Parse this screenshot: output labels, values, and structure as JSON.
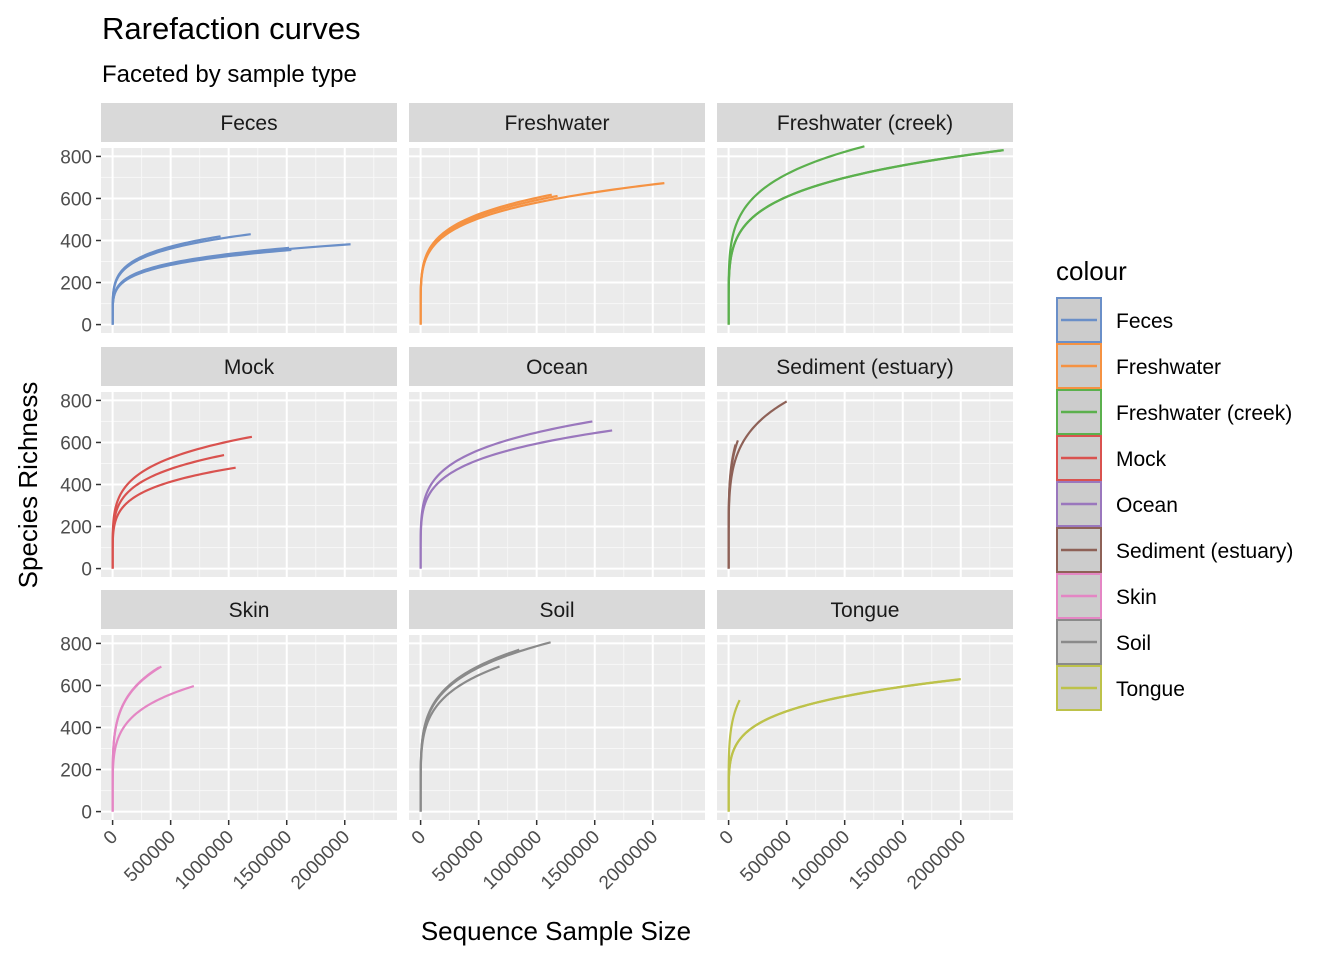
{
  "chart_data": {
    "type": "line",
    "title": "Rarefaction curves",
    "subtitle": "Faceted by sample type",
    "xlabel": "Sequence Sample Size",
    "ylabel": "Species Richness",
    "xlim": [
      -100000,
      2450000
    ],
    "ylim": [
      -40,
      840
    ],
    "x_ticks": [
      0,
      500000,
      1000000,
      1500000,
      2000000
    ],
    "x_tick_labels": [
      "0",
      "500000",
      "1000000",
      "1500000",
      "2000000"
    ],
    "y_ticks": [
      0,
      200,
      400,
      600,
      800
    ],
    "y_tick_labels": [
      "0",
      "200",
      "400",
      "600",
      "800"
    ],
    "grid": true,
    "legend": {
      "title": "colour",
      "placement": "right",
      "entries": [
        {
          "label": "Feces",
          "color": "#6A8FC8"
        },
        {
          "label": "Freshwater",
          "color": "#F59242"
        },
        {
          "label": "Freshwater (creek)",
          "color": "#5BB04D"
        },
        {
          "label": "Mock",
          "color": "#D9524F"
        },
        {
          "label": "Ocean",
          "color": "#9A77BD"
        },
        {
          "label": "Sediment (estuary)",
          "color": "#8E6157"
        },
        {
          "label": "Skin",
          "color": "#E486C4"
        },
        {
          "label": "Soil",
          "color": "#8A8A8A"
        },
        {
          "label": "Tongue",
          "color": "#BDC24A"
        }
      ]
    },
    "facets": [
      {
        "label": "Feces",
        "color": "#6A8FC8",
        "series": [
          {
            "max_x": 930000,
            "max_y": 420
          },
          {
            "max_x": 1190000,
            "max_y": 430
          },
          {
            "max_x": 1520000,
            "max_y": 365
          },
          {
            "max_x": 1540000,
            "max_y": 355
          },
          {
            "max_x": 2050000,
            "max_y": 382
          }
        ]
      },
      {
        "label": "Freshwater",
        "color": "#F59242",
        "series": [
          {
            "max_x": 1130000,
            "max_y": 618
          },
          {
            "max_x": 1180000,
            "max_y": 612
          },
          {
            "max_x": 2100000,
            "max_y": 673
          }
        ]
      },
      {
        "label": "Freshwater (creek)",
        "color": "#5BB04D",
        "series": [
          {
            "max_x": 1170000,
            "max_y": 848
          },
          {
            "max_x": 2370000,
            "max_y": 830
          },
          {
            "max_x": 2350000,
            "max_y": 828
          }
        ]
      },
      {
        "label": "Mock",
        "color": "#D9524F",
        "series": [
          {
            "max_x": 1200000,
            "max_y": 627
          },
          {
            "max_x": 960000,
            "max_y": 540
          },
          {
            "max_x": 1060000,
            "max_y": 480
          }
        ]
      },
      {
        "label": "Ocean",
        "color": "#9A77BD",
        "series": [
          {
            "max_x": 1480000,
            "max_y": 700
          },
          {
            "max_x": 1650000,
            "max_y": 657
          }
        ]
      },
      {
        "label": "Sediment (estuary)",
        "color": "#8E6157",
        "series": [
          {
            "max_x": 500000,
            "max_y": 795
          },
          {
            "max_x": 80000,
            "max_y": 610
          },
          {
            "max_x": 60000,
            "max_y": 590
          }
        ]
      },
      {
        "label": "Skin",
        "color": "#E486C4",
        "series": [
          {
            "max_x": 420000,
            "max_y": 690
          },
          {
            "max_x": 700000,
            "max_y": 597
          },
          {
            "max_x": 400000,
            "max_y": 686
          }
        ]
      },
      {
        "label": "Soil",
        "color": "#8A8A8A",
        "series": [
          {
            "max_x": 1120000,
            "max_y": 805
          },
          {
            "max_x": 850000,
            "max_y": 770
          },
          {
            "max_x": 680000,
            "max_y": 690
          }
        ]
      },
      {
        "label": "Tongue",
        "color": "#BDC24A",
        "series": [
          {
            "max_x": 95000,
            "max_y": 530
          },
          {
            "max_x": 2000000,
            "max_y": 630
          },
          {
            "max_x": 1980000,
            "max_y": 628
          }
        ]
      }
    ]
  }
}
